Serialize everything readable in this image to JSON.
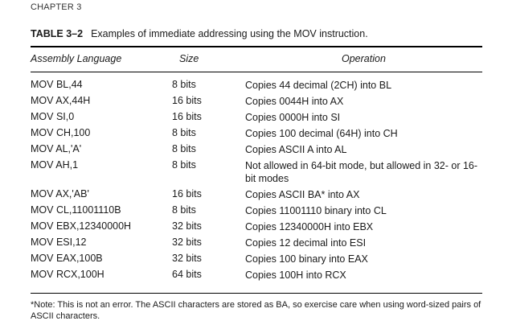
{
  "chapter": "CHAPTER 3",
  "caption": {
    "number": "TABLE 3–2",
    "title": "Examples of immediate addressing using the MOV instruction."
  },
  "headers": {
    "assembly": "Assembly Language",
    "size": "Size",
    "operation": "Operation"
  },
  "rows": [
    {
      "asm": "MOV BL,44",
      "size": "8 bits",
      "op": "Copies 44 decimal (2CH) into BL"
    },
    {
      "asm": "MOV AX,44H",
      "size": "16 bits",
      "op": "Copies 0044H into AX"
    },
    {
      "asm": "MOV SI,0",
      "size": "16 bits",
      "op": "Copies 0000H into SI"
    },
    {
      "asm": "MOV CH,100",
      "size": "8 bits",
      "op": "Copies 100 decimal (64H) into CH"
    },
    {
      "asm": "MOV AL,'A'",
      "size": "8 bits",
      "op": "Copies ASCII A into AL"
    },
    {
      "asm": "MOV AH,1",
      "size": "8 bits",
      "op": "Not allowed in 64-bit mode, but allowed in 32- or 16-bit modes"
    },
    {
      "asm": "MOV AX,'AB'",
      "size": "16 bits",
      "op": "Copies ASCII BA* into AX"
    },
    {
      "asm": "MOV CL,11001110B",
      "size": "8 bits",
      "op": "Copies 11001110 binary into CL"
    },
    {
      "asm": "MOV EBX,12340000H",
      "size": "32 bits",
      "op": "Copies 12340000H into EBX"
    },
    {
      "asm": "MOV ESI,12",
      "size": "32 bits",
      "op": "Copies 12 decimal into ESI"
    },
    {
      "asm": "MOV EAX,100B",
      "size": "32 bits",
      "op": "Copies 100 binary into EAX"
    },
    {
      "asm": "MOV RCX,100H",
      "size": "64 bits",
      "op": "Copies 100H into RCX"
    }
  ],
  "note": "*Note: This is not an error. The ASCII characters are stored as BA, so exercise care when using word-sized pairs of ASCII characters."
}
